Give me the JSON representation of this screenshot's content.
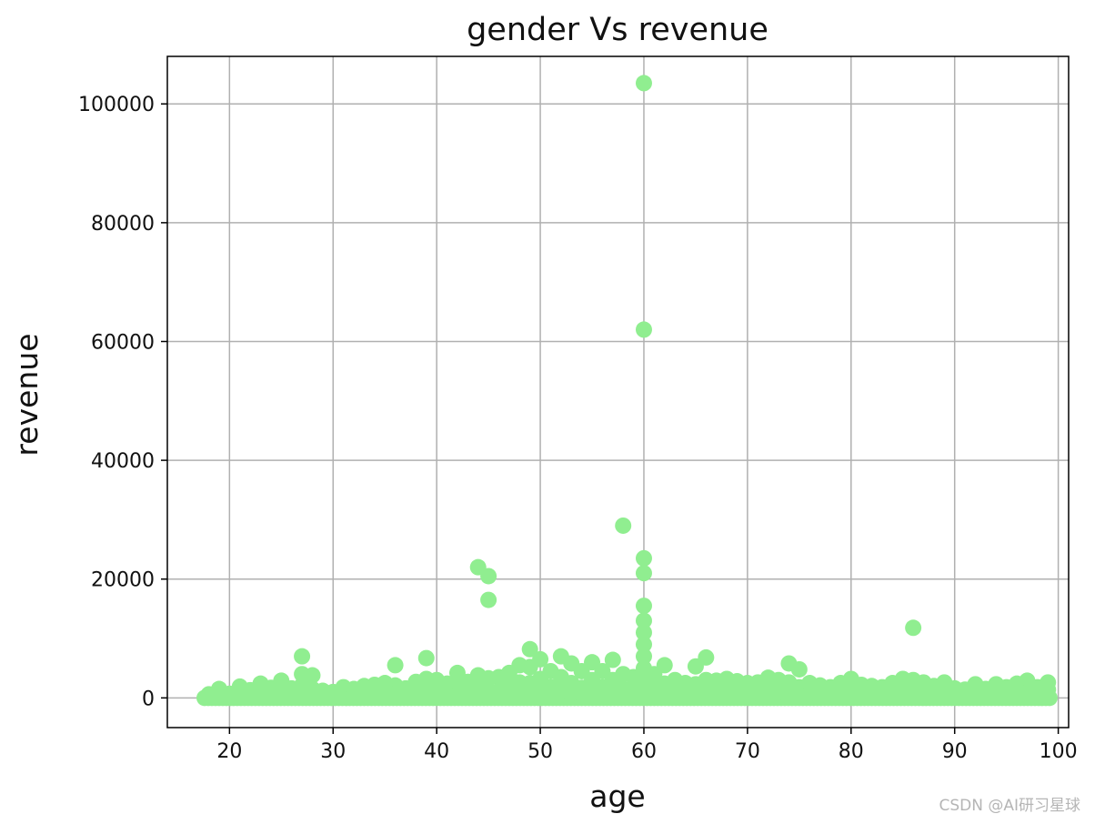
{
  "chart_data": {
    "type": "scatter",
    "title": "gender Vs revenue",
    "xlabel": "age",
    "ylabel": "revenue",
    "xlim": [
      14,
      101
    ],
    "ylim": [
      -5000,
      108000
    ],
    "xticks": [
      20,
      30,
      40,
      50,
      60,
      70,
      80,
      90,
      100
    ],
    "yticks": [
      0,
      20000,
      40000,
      60000,
      80000,
      100000
    ],
    "grid": true,
    "legend": false,
    "color": "#90ee90",
    "series": [
      {
        "points": [
          [
            18,
            600
          ],
          [
            18,
            150
          ],
          [
            19,
            1500
          ],
          [
            19,
            900
          ],
          [
            19,
            200
          ],
          [
            20,
            700
          ],
          [
            20,
            300
          ],
          [
            21,
            1900
          ],
          [
            21,
            1000
          ],
          [
            21,
            300
          ],
          [
            22,
            1300
          ],
          [
            22,
            500
          ],
          [
            23,
            2400
          ],
          [
            23,
            900
          ],
          [
            23,
            250
          ],
          [
            24,
            1700
          ],
          [
            24,
            600
          ],
          [
            25,
            2900
          ],
          [
            25,
            1200
          ],
          [
            25,
            300
          ],
          [
            26,
            1600
          ],
          [
            26,
            500
          ],
          [
            27,
            7000
          ],
          [
            27,
            4000
          ],
          [
            27,
            2100
          ],
          [
            27,
            800
          ],
          [
            27,
            200
          ],
          [
            28,
            3800
          ],
          [
            28,
            1500
          ],
          [
            28,
            400
          ],
          [
            29,
            1200
          ],
          [
            29,
            300
          ],
          [
            30,
            1000
          ],
          [
            30,
            250
          ],
          [
            31,
            1800
          ],
          [
            31,
            600
          ],
          [
            32,
            1500
          ],
          [
            32,
            400
          ],
          [
            33,
            2000
          ],
          [
            33,
            700
          ],
          [
            34,
            2200
          ],
          [
            34,
            800
          ],
          [
            34,
            200
          ],
          [
            35,
            2500
          ],
          [
            35,
            900
          ],
          [
            36,
            5500
          ],
          [
            36,
            2100
          ],
          [
            36,
            700
          ],
          [
            37,
            1600
          ],
          [
            37,
            500
          ],
          [
            38,
            2700
          ],
          [
            38,
            900
          ],
          [
            39,
            6700
          ],
          [
            39,
            3200
          ],
          [
            39,
            1000
          ],
          [
            39,
            300
          ],
          [
            40,
            3000
          ],
          [
            40,
            1100
          ],
          [
            41,
            2400
          ],
          [
            41,
            800
          ],
          [
            42,
            4200
          ],
          [
            42,
            1800
          ],
          [
            42,
            400
          ],
          [
            43,
            2700
          ],
          [
            43,
            900
          ],
          [
            44,
            22000
          ],
          [
            44,
            3800
          ],
          [
            44,
            1500
          ],
          [
            44,
            400
          ],
          [
            45,
            20500
          ],
          [
            45,
            16500
          ],
          [
            45,
            3300
          ],
          [
            45,
            1200
          ],
          [
            46,
            3500
          ],
          [
            46,
            1200
          ],
          [
            46,
            300
          ],
          [
            47,
            4200
          ],
          [
            47,
            1700
          ],
          [
            48,
            5500
          ],
          [
            48,
            2600
          ],
          [
            48,
            900
          ],
          [
            49,
            8200
          ],
          [
            49,
            5200
          ],
          [
            49,
            2500
          ],
          [
            49,
            800
          ],
          [
            50,
            6500
          ],
          [
            50,
            3200
          ],
          [
            50,
            1100
          ],
          [
            51,
            4500
          ],
          [
            51,
            1800
          ],
          [
            51,
            400
          ],
          [
            52,
            7000
          ],
          [
            52,
            3500
          ],
          [
            52,
            1200
          ],
          [
            53,
            5800
          ],
          [
            53,
            2500
          ],
          [
            53,
            800
          ],
          [
            54,
            4500
          ],
          [
            54,
            1700
          ],
          [
            55,
            6000
          ],
          [
            55,
            3000
          ],
          [
            55,
            1000
          ],
          [
            56,
            4500
          ],
          [
            56,
            1800
          ],
          [
            57,
            6400
          ],
          [
            57,
            3000
          ],
          [
            57,
            900
          ],
          [
            58,
            29000
          ],
          [
            58,
            4000
          ],
          [
            58,
            1500
          ],
          [
            59,
            3500
          ],
          [
            59,
            1200
          ],
          [
            60,
            103500
          ],
          [
            60,
            62000
          ],
          [
            60,
            23500
          ],
          [
            60,
            21000
          ],
          [
            60,
            15500
          ],
          [
            60,
            13000
          ],
          [
            60,
            11000
          ],
          [
            60,
            9000
          ],
          [
            60,
            7000
          ],
          [
            60,
            5000
          ],
          [
            60,
            3000
          ],
          [
            60,
            1000
          ],
          [
            61,
            4000
          ],
          [
            61,
            1500
          ],
          [
            62,
            5500
          ],
          [
            62,
            2400
          ],
          [
            62,
            700
          ],
          [
            63,
            3000
          ],
          [
            63,
            1000
          ],
          [
            64,
            2500
          ],
          [
            64,
            800
          ],
          [
            65,
            5300
          ],
          [
            65,
            2300
          ],
          [
            65,
            700
          ],
          [
            66,
            6800
          ],
          [
            66,
            3000
          ],
          [
            66,
            900
          ],
          [
            67,
            2900
          ],
          [
            67,
            1000
          ],
          [
            68,
            3200
          ],
          [
            68,
            1100
          ],
          [
            69,
            2800
          ],
          [
            69,
            900
          ],
          [
            70,
            2500
          ],
          [
            70,
            800
          ],
          [
            71,
            2600
          ],
          [
            71,
            800
          ],
          [
            72,
            3400
          ],
          [
            72,
            1200
          ],
          [
            73,
            3000
          ],
          [
            73,
            1000
          ],
          [
            74,
            5800
          ],
          [
            74,
            2600
          ],
          [
            74,
            800
          ],
          [
            75,
            4800
          ],
          [
            75,
            1800
          ],
          [
            76,
            2500
          ],
          [
            76,
            800
          ],
          [
            77,
            2100
          ],
          [
            77,
            700
          ],
          [
            78,
            1800
          ],
          [
            78,
            600
          ],
          [
            79,
            2500
          ],
          [
            79,
            800
          ],
          [
            80,
            3200
          ],
          [
            80,
            1100
          ],
          [
            81,
            2200
          ],
          [
            81,
            700
          ],
          [
            82,
            2000
          ],
          [
            82,
            600
          ],
          [
            83,
            1800
          ],
          [
            83,
            500
          ],
          [
            84,
            2500
          ],
          [
            84,
            800
          ],
          [
            85,
            3200
          ],
          [
            85,
            1100
          ],
          [
            86,
            11800
          ],
          [
            86,
            3000
          ],
          [
            86,
            1000
          ],
          [
            87,
            2600
          ],
          [
            87,
            800
          ],
          [
            88,
            2000
          ],
          [
            88,
            600
          ],
          [
            89,
            2600
          ],
          [
            89,
            800
          ],
          [
            90,
            1600
          ],
          [
            90,
            500
          ],
          [
            91,
            1400
          ],
          [
            91,
            400
          ],
          [
            92,
            2300
          ],
          [
            92,
            700
          ],
          [
            93,
            1500
          ],
          [
            93,
            400
          ],
          [
            94,
            2300
          ],
          [
            94,
            700
          ],
          [
            95,
            1800
          ],
          [
            95,
            500
          ],
          [
            96,
            2400
          ],
          [
            96,
            800
          ],
          [
            97,
            2900
          ],
          [
            97,
            900
          ],
          [
            98,
            1800
          ],
          [
            98,
            500
          ],
          [
            99,
            2600
          ],
          [
            99,
            1400
          ],
          [
            99,
            300
          ]
        ]
      }
    ]
  },
  "watermark": "CSDN @AI研习星球"
}
